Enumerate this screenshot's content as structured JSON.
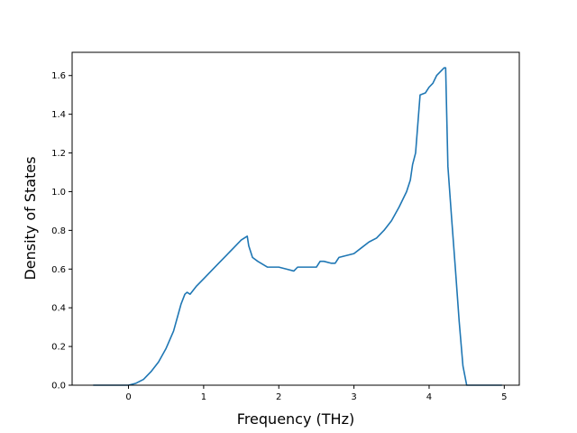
{
  "chart_data": {
    "type": "line",
    "title": "",
    "xlabel": "Frequency (THz)",
    "ylabel": "Density of States",
    "xlim": [
      -0.75,
      5.2
    ],
    "ylim": [
      0,
      1.72
    ],
    "grid": false,
    "legend": "none",
    "line_color": "#1f77b4",
    "x_ticks": [
      0,
      1,
      2,
      3,
      4,
      5
    ],
    "x_tick_labels": [
      "0",
      "1",
      "2",
      "3",
      "4",
      "5"
    ],
    "y_ticks": [
      0.0,
      0.2,
      0.4,
      0.6,
      0.8,
      1.0,
      1.2,
      1.4,
      1.6
    ],
    "y_tick_labels": [
      "0.0",
      "0.2",
      "0.4",
      "0.6",
      "0.8",
      "1.0",
      "1.2",
      "1.4",
      "1.6"
    ],
    "series": [
      {
        "x": [
          -0.47,
          -0.3,
          -0.1,
          0.0,
          0.1,
          0.2,
          0.3,
          0.4,
          0.5,
          0.6,
          0.7,
          0.75,
          0.78,
          0.82,
          0.86,
          0.88,
          0.9,
          1.0,
          1.1,
          1.2,
          1.3,
          1.4,
          1.5,
          1.58,
          1.6,
          1.65,
          1.72,
          1.85,
          1.92,
          2.0,
          2.1,
          2.2,
          2.25,
          2.3,
          2.4,
          2.5,
          2.55,
          2.6,
          2.7,
          2.75,
          2.8,
          2.9,
          3.0,
          3.1,
          3.2,
          3.3,
          3.4,
          3.5,
          3.6,
          3.7,
          3.75,
          3.78,
          3.82,
          3.85,
          3.88,
          3.95,
          4.0,
          4.05,
          4.1,
          4.15,
          4.2,
          4.22,
          4.25,
          4.3,
          4.35,
          4.4,
          4.45,
          4.5,
          4.52,
          4.6,
          4.8,
          4.97
        ],
        "y": [
          0.0,
          0.0,
          0.0,
          0.0,
          0.01,
          0.03,
          0.07,
          0.12,
          0.19,
          0.28,
          0.42,
          0.47,
          0.48,
          0.47,
          0.49,
          0.5,
          0.51,
          0.55,
          0.59,
          0.63,
          0.67,
          0.71,
          0.75,
          0.77,
          0.72,
          0.66,
          0.64,
          0.61,
          0.61,
          0.61,
          0.6,
          0.59,
          0.61,
          0.61,
          0.61,
          0.61,
          0.64,
          0.64,
          0.63,
          0.63,
          0.66,
          0.67,
          0.68,
          0.71,
          0.74,
          0.76,
          0.8,
          0.85,
          0.92,
          1.0,
          1.06,
          1.14,
          1.2,
          1.35,
          1.5,
          1.51,
          1.54,
          1.56,
          1.6,
          1.62,
          1.64,
          1.64,
          1.13,
          0.86,
          0.6,
          0.33,
          0.1,
          0.0,
          0.0,
          0.0,
          0.0,
          0.0
        ]
      }
    ]
  }
}
